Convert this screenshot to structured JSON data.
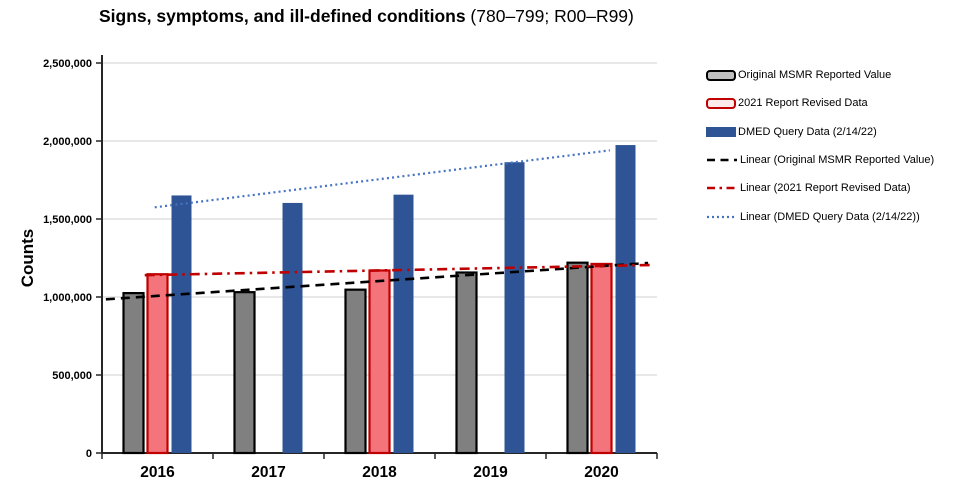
{
  "title": {
    "main": "Signs, symptoms, and ill-defined conditions",
    "suffix": " (780–799; R00–R99)"
  },
  "legend": {
    "items": [
      {
        "label": "Original MSMR Reported Value",
        "swatch": "bar-gray-outline"
      },
      {
        "label": "2021 Report Revised Data",
        "swatch": "bar-red-outline"
      },
      {
        "label": "DMED Query Data (2/14/22)",
        "swatch": "bar-blue-solid"
      },
      {
        "label": "Linear (Original MSMR Reported Value)",
        "swatch": "line-black-dash"
      },
      {
        "label": "Linear (2021 Report Revised Data)",
        "swatch": "line-red-dashdot"
      },
      {
        "label": "Linear (DMED Query Data (2/14/22))",
        "swatch": "line-blue-dot"
      }
    ]
  },
  "chart_data": {
    "type": "bar",
    "title": "Signs, symptoms, and ill-defined conditions (780–799; R00–R99)",
    "categories": [
      "2016",
      "2017",
      "2018",
      "2019",
      "2020"
    ],
    "series": [
      {
        "name": "Original MSMR Reported Value",
        "color": "#808080",
        "border": "#000000",
        "values": [
          1025000,
          1031000,
          1047000,
          1157000,
          1220000
        ]
      },
      {
        "name": "2021 Report Revised Data",
        "color": "#f4747b",
        "border": "#c00000",
        "values": [
          1146000,
          null,
          1170000,
          null,
          1212000
        ]
      },
      {
        "name": "DMED Query Data (2/14/22)",
        "color": "#2f5496",
        "border": "none",
        "values": [
          1651000,
          1603000,
          1656000,
          1864000,
          1974000
        ]
      }
    ],
    "trendlines": [
      {
        "name": "Linear (Original MSMR Reported Value)",
        "color": "#000000",
        "style": "dash",
        "v1": 985000,
        "v2": 1218000,
        "x1": 0.007,
        "x2": 0.984
      },
      {
        "name": "Linear (2021 Report Revised Data)",
        "color": "#c00000",
        "style": "dashdot",
        "v1": 1140000,
        "v2": 1205000,
        "x1": 0.077,
        "x2": 0.987
      },
      {
        "name": "Linear (DMED Query Data (2/14/22))",
        "color": "#4472c4",
        "style": "dot",
        "v1": 1575000,
        "v2": 1940000,
        "x1": 0.095,
        "x2": 0.915
      }
    ],
    "xlabel": "",
    "ylabel": "Counts",
    "y_ticks": [
      "0",
      "500,000",
      "1,000,000",
      "1,500,000",
      "2,000,000",
      "2,500,000"
    ],
    "ylim": [
      0,
      2500000
    ],
    "grid": true,
    "legend_position": "right",
    "grid_color": "#d9d9d9",
    "axis_color": "#262626"
  }
}
